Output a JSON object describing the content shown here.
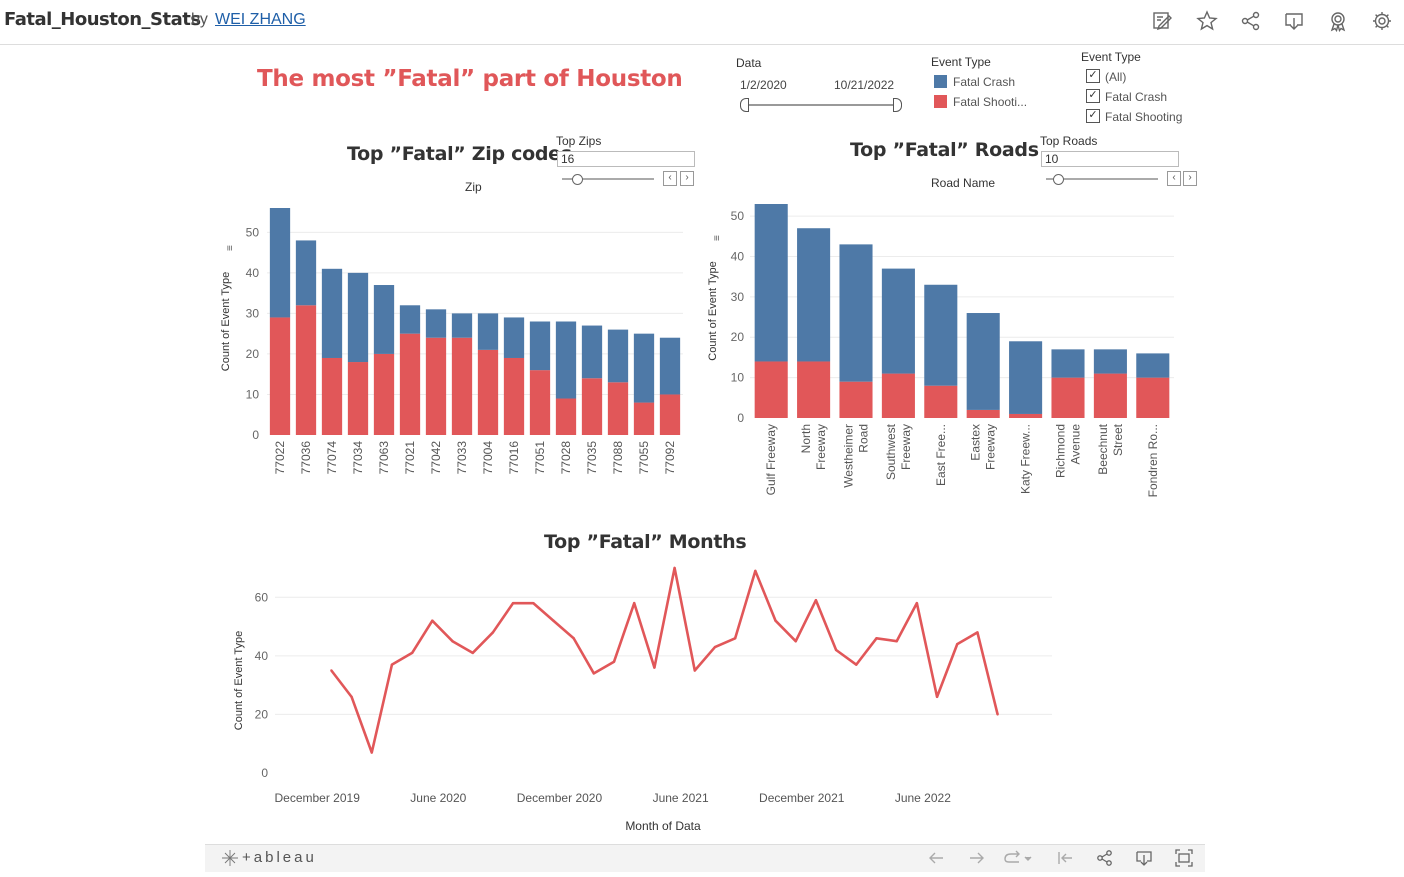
{
  "header": {
    "title": "Fatal_Houston_Stats",
    "by": "by",
    "author": "WEI ZHANG",
    "icons": [
      "edit-icon",
      "star-icon",
      "share-icon",
      "download-icon",
      "badge-icon",
      "settings-icon"
    ]
  },
  "dashboard": {
    "main_title": "The most ”Fatal” part of Houston",
    "date_filter": {
      "label": "Data",
      "start": "1/2/2020",
      "end": "10/21/2022"
    },
    "legend": {
      "title": "Event Type",
      "items": [
        {
          "label": "Fatal Crash",
          "color": "#4e79a7"
        },
        {
          "label": "Fatal Shooti...",
          "color": "#e15759"
        }
      ]
    },
    "event_filter": {
      "title": "Event Type",
      "options": [
        {
          "label": "(All)",
          "checked": true
        },
        {
          "label": "Fatal Crash",
          "checked": true
        },
        {
          "label": "Fatal Shooting",
          "checked": true
        }
      ]
    },
    "top_zips": {
      "label": "Top Zips",
      "value": "16"
    },
    "top_roads": {
      "label": "Top Roads",
      "value": "10"
    }
  },
  "chart_data": [
    {
      "type": "bar",
      "stacked": true,
      "title": "Top ”Fatal” Zip codes",
      "header_label": "Zip",
      "ylabel": "Count of Event Type",
      "ylim": [
        0,
        56
      ],
      "yticks": [
        0,
        10,
        20,
        30,
        40,
        50
      ],
      "grid": true,
      "categories": [
        "77022",
        "77036",
        "77074",
        "77034",
        "77063",
        "77021",
        "77042",
        "77033",
        "77004",
        "77016",
        "77051",
        "77028",
        "77035",
        "77088",
        "77055",
        "77092"
      ],
      "series": [
        {
          "name": "Fatal Shooti...",
          "color": "#e15759",
          "values": [
            29,
            32,
            19,
            18,
            20,
            25,
            24,
            24,
            21,
            19,
            16,
            9,
            14,
            13,
            8,
            10
          ]
        },
        {
          "name": "Fatal Crash",
          "color": "#4e79a7",
          "values": [
            27,
            16,
            22,
            22,
            17,
            7,
            7,
            6,
            9,
            10,
            12,
            19,
            13,
            13,
            17,
            14
          ]
        }
      ]
    },
    {
      "type": "bar",
      "stacked": true,
      "title": "Top ”Fatal” Roads",
      "header_label": "Road Name",
      "ylabel": "Count of Event Type",
      "ylim": [
        0,
        53
      ],
      "yticks": [
        0,
        10,
        20,
        30,
        40,
        50
      ],
      "grid": true,
      "categories": [
        [
          "Gulf Freeway"
        ],
        [
          "North",
          "Freeway"
        ],
        [
          "Westheimer",
          "Road"
        ],
        [
          "Southwest",
          "Freeway"
        ],
        [
          "East Free..."
        ],
        [
          "Eastex",
          "Freeway"
        ],
        [
          "Katy Freew..."
        ],
        [
          "Richmond",
          "Avenue"
        ],
        [
          "Beechnut",
          "Street"
        ],
        [
          "Fondren Ro..."
        ]
      ],
      "series": [
        {
          "name": "Fatal Shooti...",
          "color": "#e15759",
          "values": [
            14,
            14,
            9,
            11,
            8,
            2,
            1,
            10,
            11,
            10
          ]
        },
        {
          "name": "Fatal Crash",
          "color": "#4e79a7",
          "values": [
            39,
            33,
            34,
            26,
            25,
            24,
            18,
            7,
            6,
            6
          ]
        }
      ]
    },
    {
      "type": "line",
      "title": "Top ”Fatal” Months",
      "xlabel": "Month of Data",
      "ylabel": "Count of Event Type",
      "ylim": [
        0,
        70
      ],
      "yticks": [
        0,
        20,
        40,
        60
      ],
      "xticks": [
        "December 2019",
        "June 2020",
        "December 2020",
        "June 2021",
        "December 2021",
        "June 2022"
      ],
      "grid": true,
      "color": "#e15759",
      "x": [
        "2020-01",
        "2020-02",
        "2020-03",
        "2020-04",
        "2020-05",
        "2020-06",
        "2020-07",
        "2020-08",
        "2020-09",
        "2020-10",
        "2020-11",
        "2020-12",
        "2021-01",
        "2021-02",
        "2021-03",
        "2021-04",
        "2021-05",
        "2021-06",
        "2021-07",
        "2021-08",
        "2021-09",
        "2021-10",
        "2021-11",
        "2021-12",
        "2022-01",
        "2022-02",
        "2022-03",
        "2022-04",
        "2022-05",
        "2022-06",
        "2022-07",
        "2022-08",
        "2022-09",
        "2022-10"
      ],
      "values": [
        35,
        26,
        7,
        37,
        41,
        52,
        45,
        41,
        48,
        58,
        58,
        52,
        46,
        34,
        38,
        58,
        36,
        70,
        35,
        43,
        46,
        69,
        52,
        45,
        59,
        42,
        37,
        46,
        45,
        58,
        26,
        44,
        48,
        20
      ]
    }
  ],
  "toolbar": {
    "logo": "+ableau",
    "icons": [
      "undo-icon",
      "redo-icon",
      "revert-icon",
      "pause-icon",
      "share-icon",
      "download-icon",
      "fullscreen-icon"
    ]
  }
}
